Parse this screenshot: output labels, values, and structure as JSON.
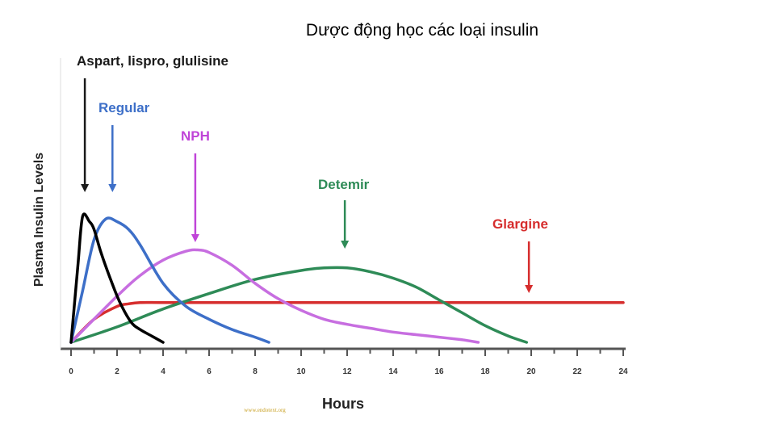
{
  "slide": {
    "title": "Dược động học các loại insulin"
  },
  "chart_data": {
    "type": "line",
    "xlabel": "Hours",
    "ylabel": "Plasma Insulin Levels",
    "xlim": [
      0,
      24
    ],
    "ylim": [
      0,
      100
    ],
    "x_ticks": [
      "0",
      "2",
      "4",
      "6",
      "8",
      "10",
      "12",
      "14",
      "16",
      "18",
      "20",
      "22",
      "24"
    ],
    "grid": false,
    "watermark": "www.endotext.org",
    "series": [
      {
        "name": "Aspart, lispro, glulisine",
        "color": "#000000",
        "x": [
          0,
          0.3,
          0.5,
          0.8,
          1.0,
          1.3,
          1.7,
          2.1,
          2.6,
          3.0,
          3.5,
          4.0
        ],
        "y": [
          0,
          60,
          98,
          94,
          88,
          70,
          50,
          32,
          16,
          10,
          5,
          0
        ]
      },
      {
        "name": "Regular",
        "color": "#3d6fc8",
        "x": [
          0,
          0.5,
          1.0,
          1.5,
          2.0,
          2.5,
          3.0,
          4.0,
          5.0,
          6.0,
          7.0,
          8.0,
          8.6
        ],
        "y": [
          0,
          40,
          80,
          96,
          94,
          88,
          76,
          46,
          28,
          18,
          10,
          4,
          0
        ]
      },
      {
        "name": "NPH",
        "color": "#c76ee0",
        "x": [
          0,
          2,
          3,
          4,
          5,
          5.5,
          6,
          7,
          8,
          9,
          10,
          11,
          12,
          13,
          14,
          15,
          16,
          17,
          17.7
        ],
        "y": [
          0,
          36,
          52,
          64,
          71,
          72,
          70,
          60,
          46,
          34,
          25,
          18,
          14,
          11,
          8,
          6,
          4,
          2,
          0
        ]
      },
      {
        "name": "Detemir",
        "color": "#2e8b57",
        "x": [
          0,
          2,
          4,
          6,
          8,
          10,
          11,
          12,
          13,
          14,
          15,
          16,
          17,
          18,
          19,
          19.8
        ],
        "y": [
          0,
          12,
          26,
          38,
          49,
          56,
          58,
          58,
          55,
          50,
          43,
          33,
          23,
          13,
          5,
          0
        ]
      },
      {
        "name": "Glargine",
        "color": "#d62d2d",
        "x": [
          0,
          1,
          2,
          2.5,
          3,
          4,
          6,
          8,
          10,
          12,
          14,
          16,
          18,
          20,
          22,
          24
        ],
        "y": [
          0,
          18,
          28,
          30,
          31,
          31,
          31,
          31,
          31,
          31,
          31,
          31,
          31,
          31,
          31,
          31
        ]
      }
    ]
  },
  "annotations": [
    {
      "text": "Aspart, lispro, glulisine",
      "color": "#1a1a1a",
      "arrow_to_x": 0.6
    },
    {
      "text": "Regular",
      "color": "#3d6fc8",
      "arrow_to_x": 1.8
    },
    {
      "text": "NPH",
      "color": "#c044d8",
      "arrow_to_x": 5.4
    },
    {
      "text": "Detemir",
      "color": "#2e8b57",
      "arrow_to_x": 11.9
    },
    {
      "text": "Glargine",
      "color": "#d62d2d",
      "arrow_to_x": 19.9
    }
  ]
}
